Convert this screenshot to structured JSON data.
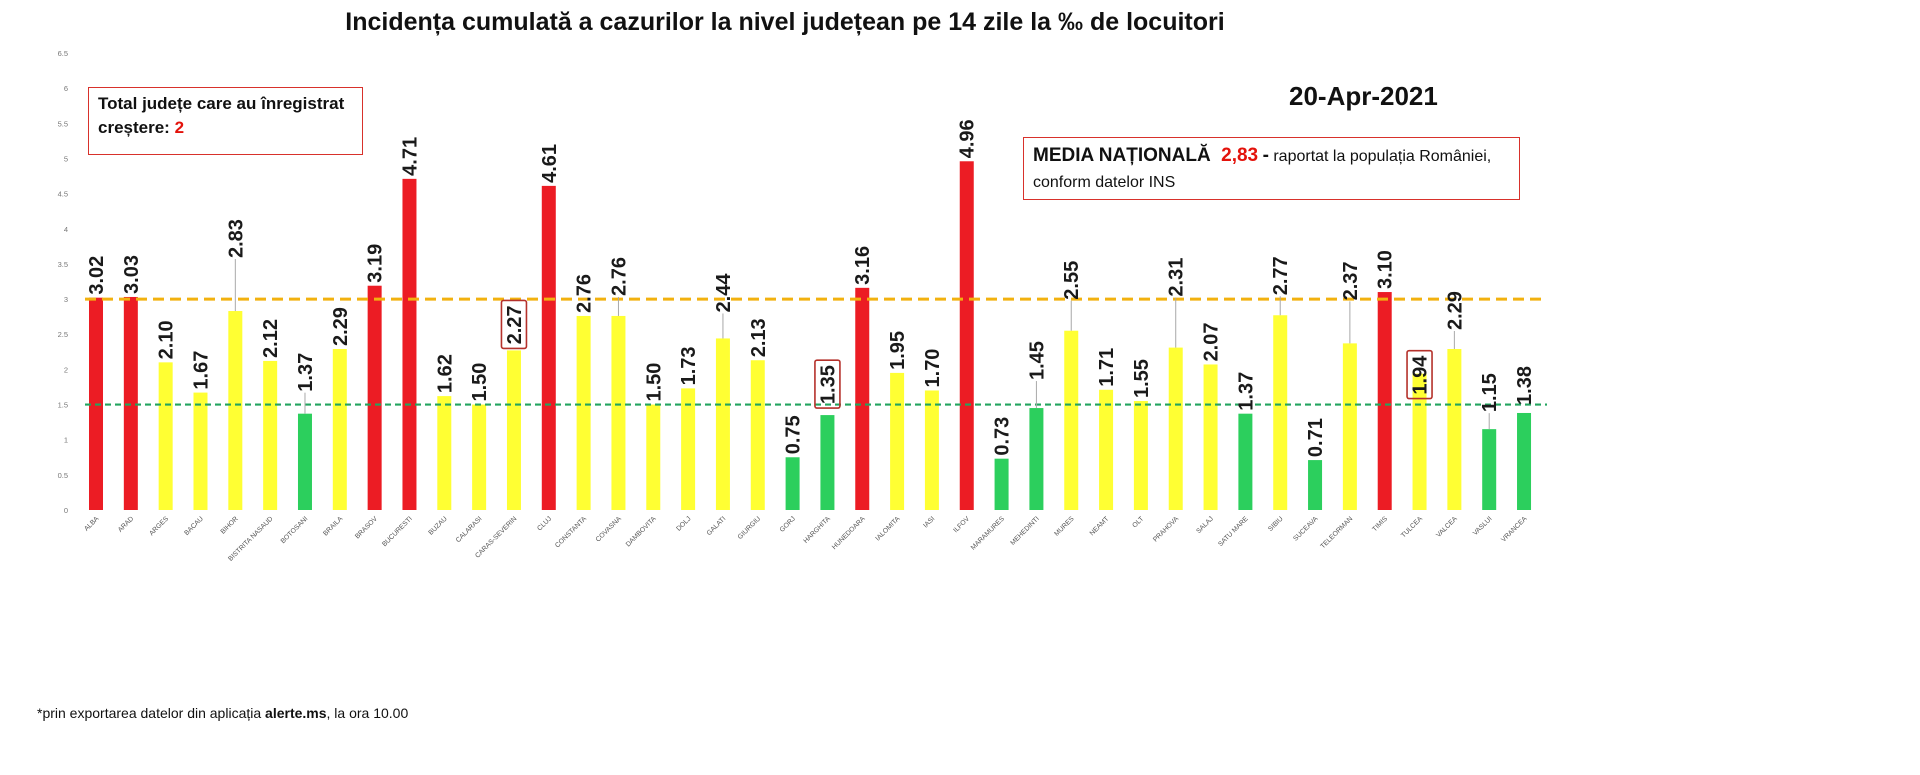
{
  "date": "20-Apr-2021",
  "increase_summary": {
    "line1": "Total județe care au înregistrat",
    "line2": "creștere:",
    "count": "2"
  },
  "national_average": {
    "label": "MEDIA NAȚIONALĂ",
    "value": "2,83",
    "separator": "-",
    "note_line1": "raportat la populația României,",
    "note_line2": "conform datelor INS"
  },
  "footnote": {
    "prefix": "*prin exportarea datelor din aplicația ",
    "app": "alerte.ms",
    "suffix": ", la ora 10.00"
  },
  "colors": {
    "box_border": "#d8312b",
    "accent_red": "#e3120b",
    "highlight_box": "#b5312b"
  },
  "chart_data": {
    "type": "bar",
    "title": "Incidența cumulată a cazurilor la nivel județean pe 14 zile la ‰ de locuitori",
    "xlabel": "",
    "ylabel": "",
    "ylim": [
      0,
      6.5
    ],
    "yticks": [
      "0",
      "0.5",
      "1",
      "1.5",
      "2",
      "2.5",
      "3",
      "3.5",
      "4",
      "4.5",
      "5",
      "5.5",
      "6",
      "6.5"
    ],
    "grid": false,
    "legend": "none",
    "categories": [
      "ALBA",
      "ARAD",
      "ARGES",
      "BACAU",
      "BIHOR",
      "BISTRITA NASAUD",
      "BOTOSANI",
      "BRAILA",
      "BRASOV",
      "BUCURESTI",
      "BUZAU",
      "CALARASI",
      "CARAS-SEVERIN",
      "CLUJ",
      "CONSTANTA",
      "COVASNA",
      "DAMBOVITA",
      "DOLJ",
      "GALATI",
      "GIURGIU",
      "GORJ",
      "HARGHITA",
      "HUNEDOARA",
      "IALOMITA",
      "IASI",
      "ILFOV",
      "MARAMURES",
      "MEHEDINTI",
      "MURES",
      "NEAMT",
      "OLT",
      "PRAHOVA",
      "SALAJ",
      "SATU MARE",
      "SIBIU",
      "SUCEAVA",
      "TELEORMAN",
      "TIMIS",
      "TULCEA",
      "VALCEA",
      "VASLUI",
      "VRANCEA"
    ],
    "values": [
      3.02,
      3.03,
      2.1,
      1.67,
      2.83,
      2.12,
      1.37,
      2.29,
      3.19,
      4.71,
      1.62,
      1.5,
      2.27,
      4.61,
      2.76,
      2.76,
      1.5,
      1.73,
      2.44,
      2.13,
      0.75,
      1.35,
      3.16,
      1.95,
      1.7,
      4.96,
      0.73,
      1.45,
      2.55,
      1.71,
      1.55,
      2.31,
      2.07,
      1.37,
      2.77,
      0.71,
      2.37,
      3.1,
      1.94,
      2.29,
      1.15,
      1.38
    ],
    "bar_colors": [
      "red",
      "red",
      "yellow",
      "yellow",
      "yellow",
      "yellow",
      "green",
      "yellow",
      "red",
      "red",
      "yellow",
      "yellow",
      "yellow",
      "red",
      "yellow",
      "yellow",
      "yellow",
      "yellow",
      "yellow",
      "yellow",
      "green",
      "green",
      "red",
      "yellow",
      "yellow",
      "red",
      "green",
      "green",
      "yellow",
      "yellow",
      "yellow",
      "yellow",
      "yellow",
      "green",
      "yellow",
      "green",
      "yellow",
      "red",
      "yellow",
      "yellow",
      "green",
      "green"
    ],
    "palette": {
      "red": "#ec1c24",
      "yellow": "#ffff33",
      "green": "#2ccf5d"
    },
    "highlighted": [
      "CARAS-SEVERIN",
      "HARGHITA",
      "TULCEA"
    ],
    "reference_lines": [
      {
        "value": 3,
        "color": "#f2b10f",
        "style": "dashed"
      },
      {
        "value": 1.5,
        "color": "#23a45f",
        "style": "dashed"
      }
    ]
  }
}
